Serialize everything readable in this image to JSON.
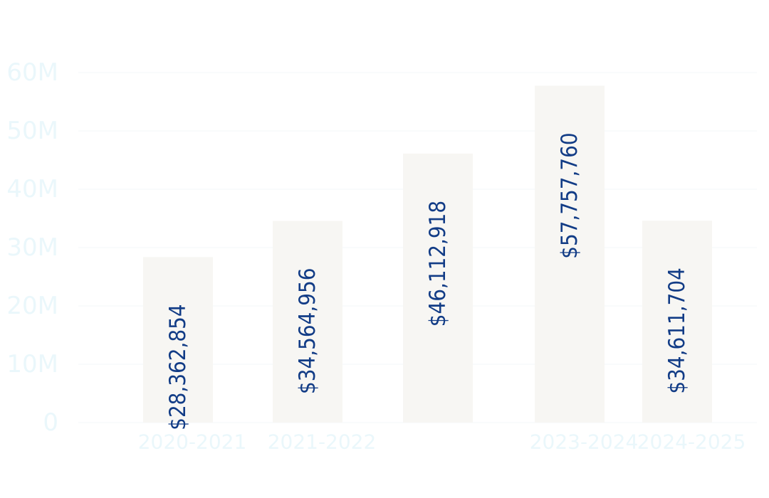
{
  "chart_data": {
    "type": "bar",
    "title": "",
    "xlabel": "",
    "ylabel": "",
    "categories": [
      "2020-2021",
      "2021-2022",
      "",
      "2023-2024",
      "2024-2025"
    ],
    "values": [
      28362854,
      34564956,
      46112918,
      57757760,
      34611704
    ],
    "data_labels": [
      "$28,362,854",
      "$34,564,956",
      "$46,112,918",
      "$57,757,760",
      "$34,611,704"
    ],
    "ylim": [
      0,
      60000000
    ],
    "yticks": [
      0,
      10000000,
      20000000,
      30000000,
      40000000,
      50000000,
      60000000
    ],
    "ytick_labels": [
      "0",
      "10M",
      "20M",
      "30M",
      "40M",
      "50M",
      "60M"
    ],
    "grid": true,
    "legend": "none"
  },
  "colors": {
    "bar": "#f7f6f3",
    "bar_label": "#123c86",
    "axis_text": "#eaf7fb",
    "grid": "#f3f7f9"
  }
}
